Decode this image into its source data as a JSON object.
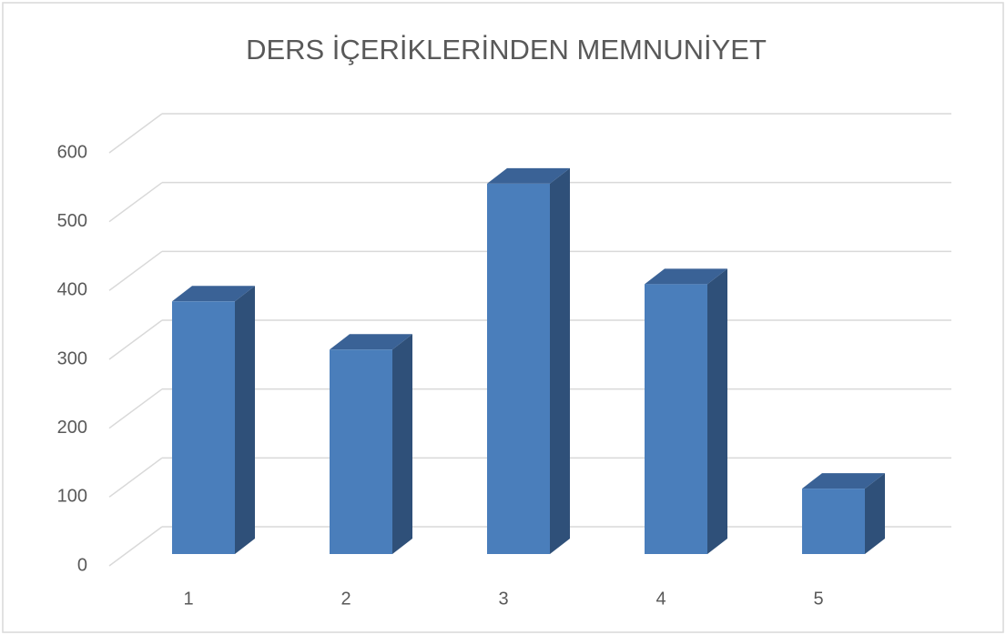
{
  "chart_data": {
    "type": "bar3d",
    "title": "DERS İÇERİKLERİNDEN MEMNUNİYET",
    "categories": [
      "1",
      "2",
      "3",
      "4",
      "5"
    ],
    "values": [
      367,
      297,
      538,
      392,
      95
    ],
    "color": "#4a7ebb",
    "ylim": [
      0,
      600
    ],
    "yticks": [
      0,
      100,
      200,
      300,
      400,
      500,
      600
    ],
    "grid": true
  }
}
